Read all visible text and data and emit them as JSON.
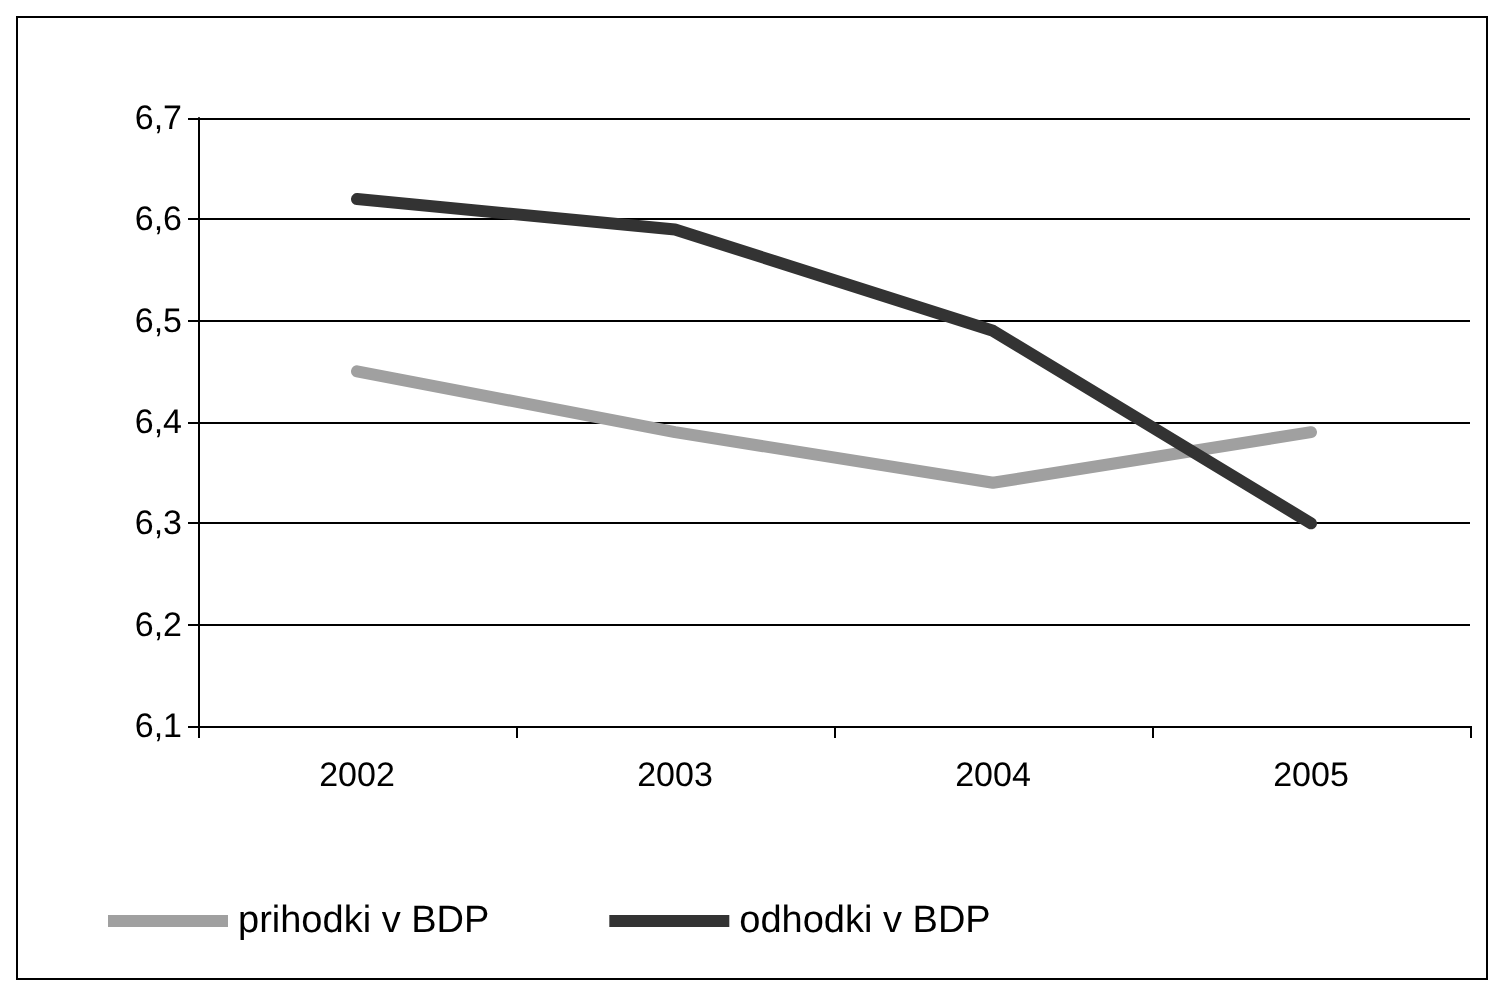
{
  "chart_data": {
    "type": "line",
    "categories": [
      "2002",
      "2003",
      "2004",
      "2005"
    ],
    "series": [
      {
        "name": "prihodki v BDP",
        "color": "#a0a0a0",
        "values": [
          6.45,
          6.39,
          6.34,
          6.39
        ]
      },
      {
        "name": "odhodki v BDP",
        "color": "#333333",
        "values": [
          6.62,
          6.59,
          6.49,
          6.3
        ]
      }
    ],
    "ylim": [
      6.1,
      6.7
    ],
    "yticks": [
      {
        "value": 6.1,
        "label": "6,1"
      },
      {
        "value": 6.2,
        "label": "6,2"
      },
      {
        "value": 6.3,
        "label": "6,3"
      },
      {
        "value": 6.4,
        "label": "6,4"
      },
      {
        "value": 6.5,
        "label": "6,5"
      },
      {
        "value": 6.6,
        "label": "6,6"
      },
      {
        "value": 6.7,
        "label": "6,7"
      }
    ],
    "grid": "y",
    "legend": "bottom",
    "marker": "none",
    "line_style": "solid"
  }
}
